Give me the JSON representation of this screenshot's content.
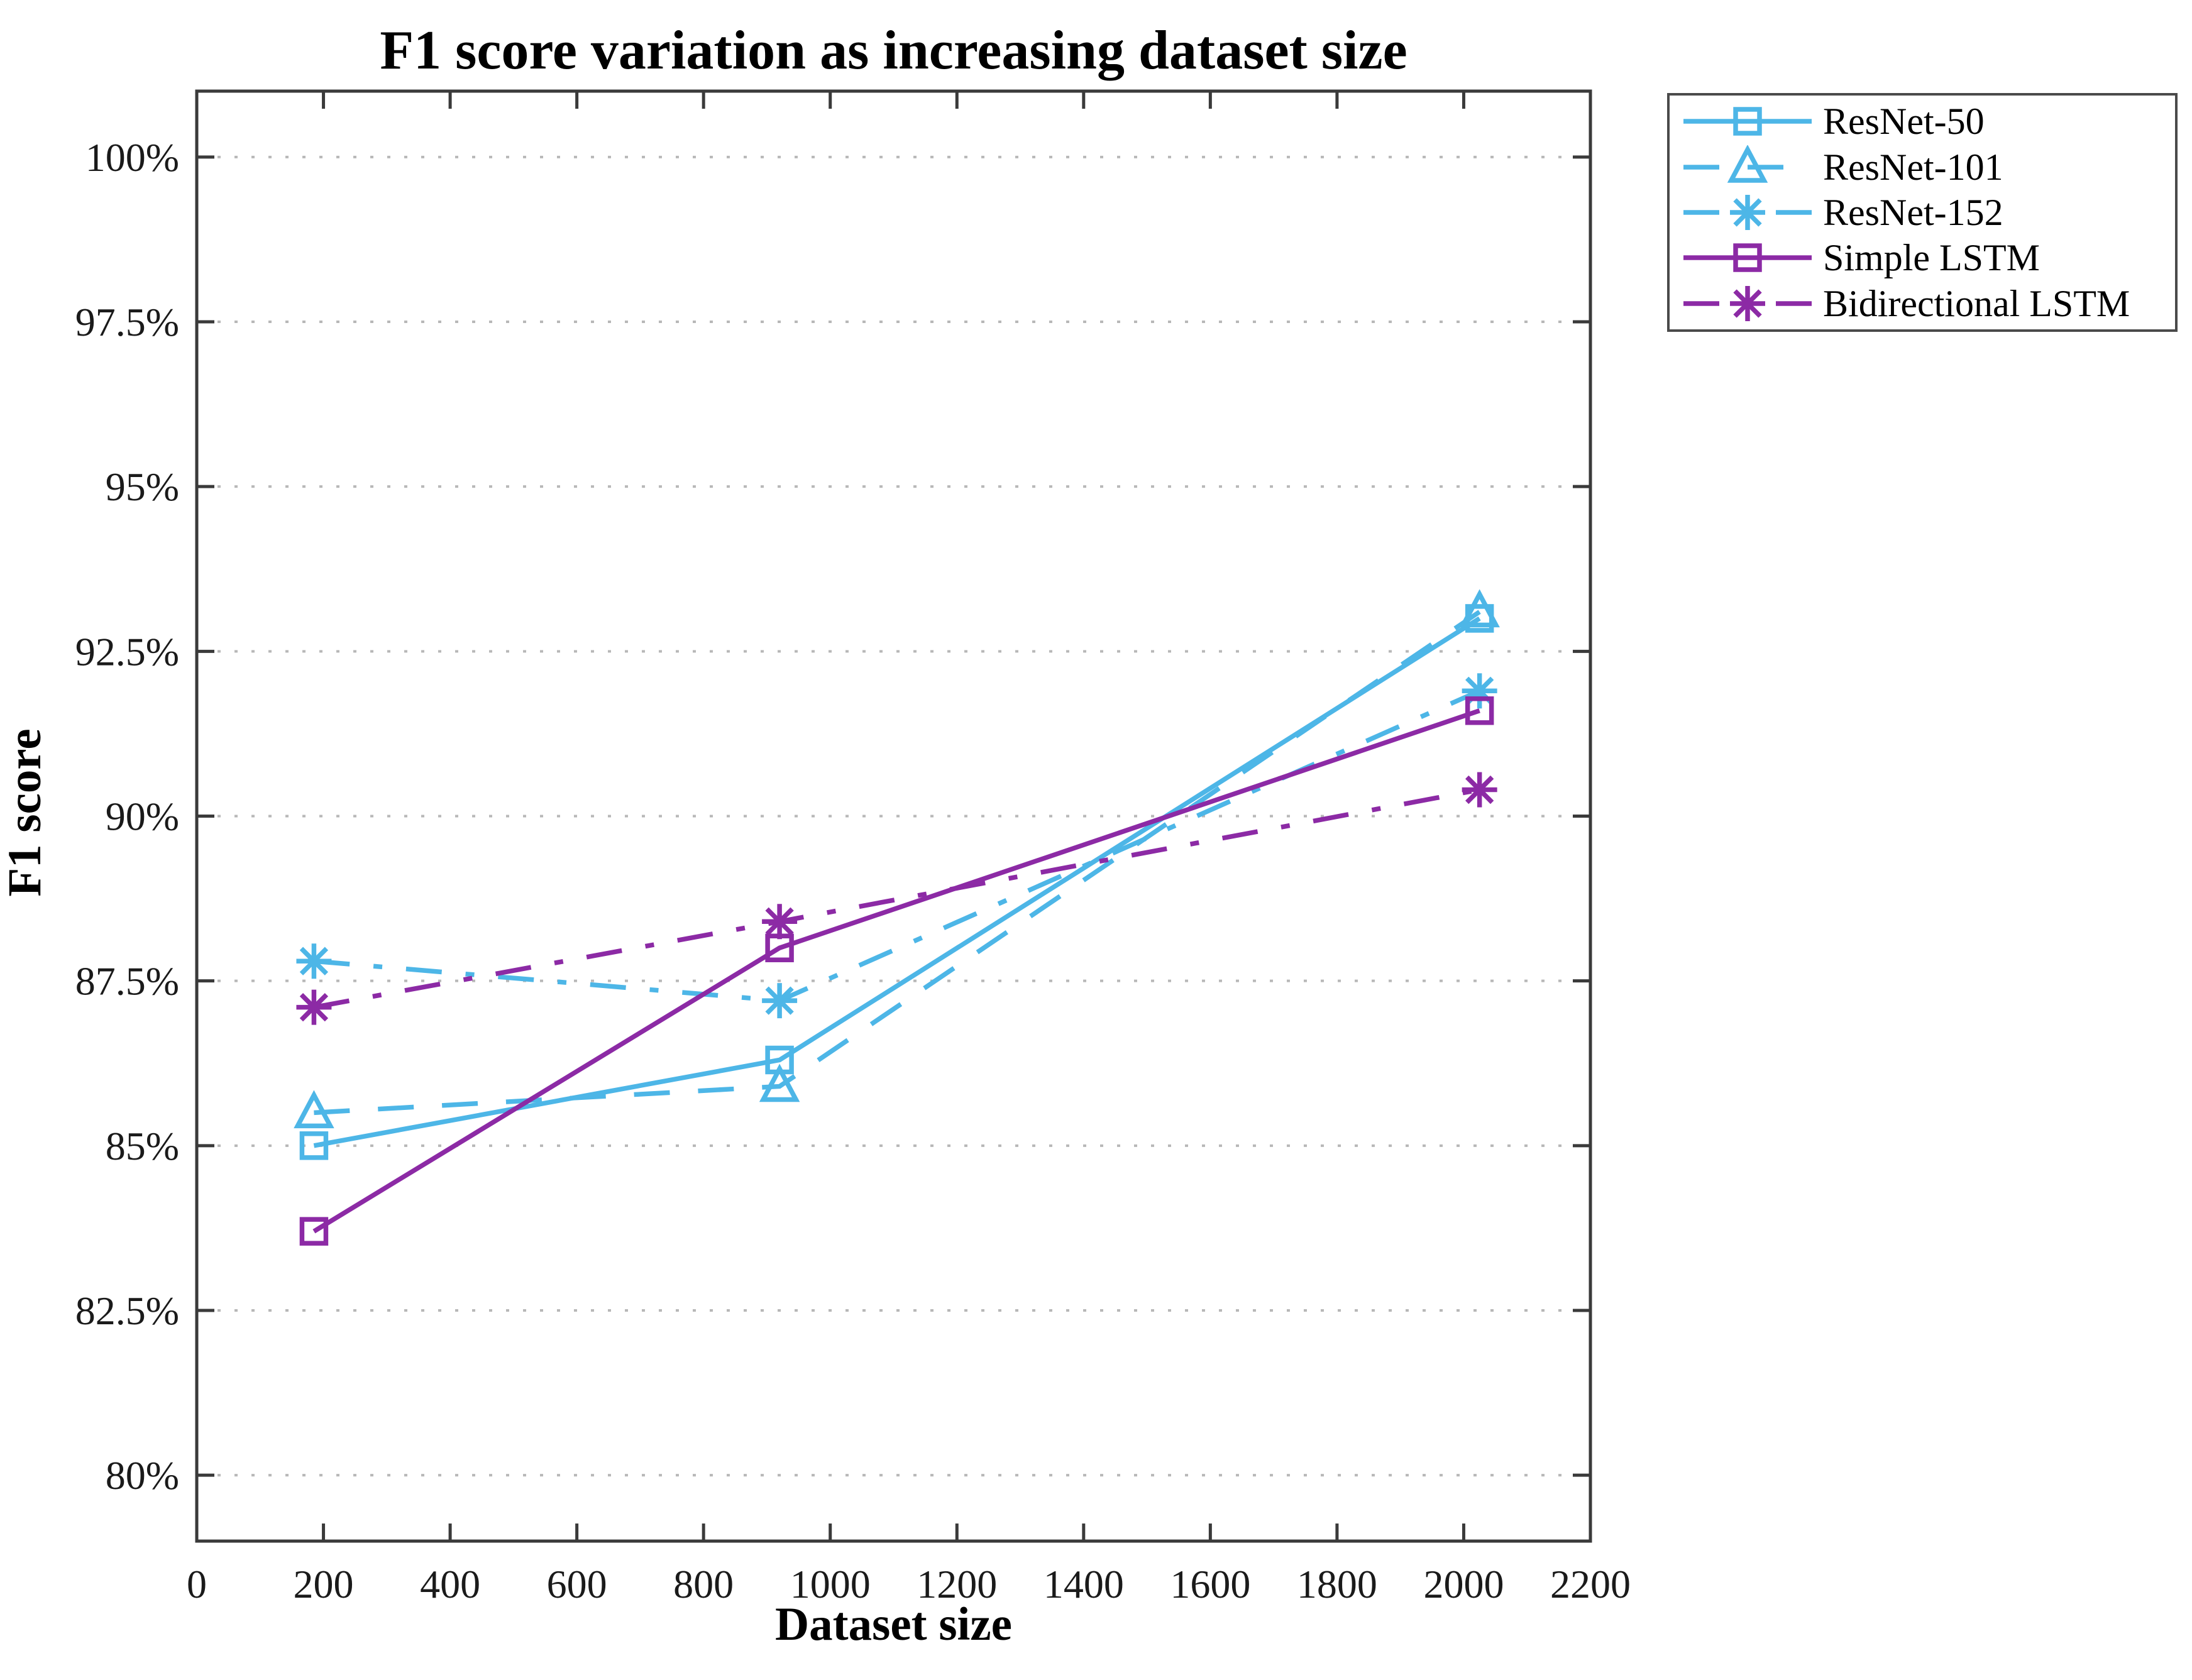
{
  "title": "F1 score variation as increasing dataset size",
  "axes": {
    "xlabel": "Dataset size",
    "ylabel": "F1 score"
  },
  "colors": {
    "series_cyan": "#4db6e7",
    "series_purple": "#8c2aa5",
    "grid": "#b8b8b8",
    "axis": "#3a3a3a",
    "text": "#000000",
    "legend_border": "#4a4a4a"
  },
  "legend": {
    "position": "outside-top-right",
    "entries": [
      "ResNet-50",
      "ResNet-101",
      "ResNet-152",
      "Simple LSTM",
      "Bidirectional LSTM"
    ]
  },
  "chart_data": {
    "type": "line",
    "title": "F1 score variation as increasing dataset size",
    "xlabel": "Dataset size",
    "ylabel": "F1 score",
    "x": [
      185,
      920,
      2025
    ],
    "series": [
      {
        "name": "ResNet-50",
        "color": "#4db6e7",
        "linestyle": "solid",
        "marker": "square",
        "values": [
          85.0,
          86.3,
          93.0
        ]
      },
      {
        "name": "ResNet-101",
        "color": "#4db6e7",
        "linestyle": "dashed",
        "marker": "triangle",
        "values": [
          85.5,
          85.9,
          93.1
        ]
      },
      {
        "name": "ResNet-152",
        "color": "#4db6e7",
        "linestyle": "dashdot",
        "marker": "asterisk",
        "values": [
          87.8,
          87.2,
          91.9
        ]
      },
      {
        "name": "Simple LSTM",
        "color": "#8c2aa5",
        "linestyle": "solid",
        "marker": "square",
        "values": [
          83.7,
          88.0,
          91.6
        ]
      },
      {
        "name": "Bidirectional LSTM",
        "color": "#8c2aa5",
        "linestyle": "dashdot",
        "marker": "asterisk",
        "values": [
          87.1,
          88.4,
          90.4
        ]
      }
    ],
    "xlim": [
      0,
      2200
    ],
    "ylim": [
      79,
      101
    ],
    "x_ticks": {
      "values": [
        0,
        200,
        400,
        600,
        800,
        1000,
        1200,
        1400,
        1600,
        1800,
        2000,
        2200
      ],
      "labels": [
        "0",
        "200",
        "400",
        "600",
        "800",
        "1000",
        "1200",
        "1400",
        "1600",
        "1800",
        "2000",
        "2200"
      ]
    },
    "y_ticks": {
      "values": [
        80,
        82.5,
        85,
        87.5,
        90,
        92.5,
        95,
        97.5,
        100
      ],
      "labels": [
        "80%",
        "82.5%",
        "85%",
        "87.5%",
        "90%",
        "92.5%",
        "95%",
        "97.5%",
        "100%"
      ]
    },
    "grid": "horizontal-dotted",
    "legend_position": "outside-top-right"
  }
}
